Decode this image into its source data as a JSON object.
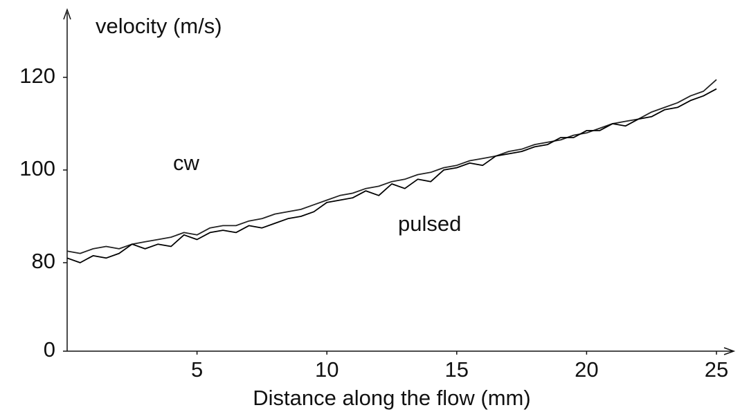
{
  "chart_data": {
    "type": "line",
    "y_axis_label": "velocity (m/s)",
    "x_axis_label": "Distance along the flow (mm)",
    "annotations": [
      "cw",
      "pulsed"
    ],
    "xlim": [
      0,
      25
    ],
    "xticks": [
      5,
      10,
      15,
      20,
      25
    ],
    "ylim": [
      0,
      134
    ],
    "yticks": [
      0,
      80,
      100,
      120
    ],
    "axis_break": [
      0,
      80
    ],
    "grid": false,
    "x": [
      0,
      0.5,
      1,
      1.5,
      2,
      2.5,
      3,
      3.5,
      4,
      4.5,
      5,
      5.5,
      6,
      6.5,
      7,
      7.5,
      8,
      8.5,
      9,
      9.5,
      10,
      10.5,
      11,
      11.5,
      12,
      12.5,
      13,
      13.5,
      14,
      14.5,
      15,
      15.5,
      16,
      16.5,
      17,
      17.5,
      18,
      18.5,
      19,
      19.5,
      20,
      20.5,
      21,
      21.5,
      22,
      22.5,
      23,
      23.5,
      24,
      24.5,
      25
    ],
    "series": [
      {
        "name": "cw",
        "color": "#222222",
        "values": [
          82.5,
          82,
          83,
          83.5,
          83,
          84,
          84.5,
          85,
          85.5,
          86.5,
          86,
          87.5,
          88,
          88,
          89,
          89.5,
          90.5,
          91,
          91.5,
          92.5,
          93.5,
          94.5,
          95,
          96,
          96.5,
          97.5,
          98,
          99,
          99.5,
          100.5,
          101,
          102,
          102.5,
          103,
          104,
          104.5,
          105.5,
          106,
          106.5,
          107.5,
          108,
          109,
          110,
          110.5,
          111,
          112.5,
          113.5,
          114.5,
          116,
          117,
          119.5
        ]
      },
      {
        "name": "pulsed",
        "color": "#000000",
        "values": [
          81,
          80,
          81.5,
          81,
          82,
          84,
          83,
          84,
          83.5,
          86,
          85,
          86.5,
          87,
          86.5,
          88,
          87.5,
          88.5,
          89.5,
          90,
          91,
          93,
          93.5,
          94,
          95.5,
          94.5,
          97,
          96,
          98,
          97.5,
          100,
          100.5,
          101.5,
          101,
          103,
          103.5,
          104,
          105,
          105.5,
          107,
          107,
          108.5,
          108.5,
          110,
          109.5,
          111,
          111.5,
          113,
          113.5,
          115,
          116,
          117.5
        ]
      }
    ]
  }
}
